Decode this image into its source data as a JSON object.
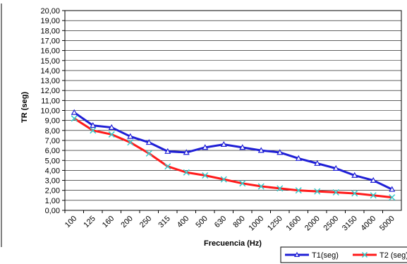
{
  "chart_data": {
    "type": "line",
    "title": "",
    "xlabel": "Frecuencia (Hz)",
    "ylabel": "TR (seg)",
    "categories": [
      "100",
      "125",
      "160",
      "200",
      "250",
      "315",
      "400",
      "500",
      "630",
      "800",
      "1000",
      "1250",
      "1600",
      "2000",
      "2500",
      "3150",
      "4000",
      "5000"
    ],
    "ylim": [
      0,
      20
    ],
    "ystep": 1,
    "ytick_labels": [
      "0,00",
      "1,00",
      "2,00",
      "3,00",
      "4,00",
      "5,00",
      "6,00",
      "7,00",
      "8,00",
      "9,00",
      "10,00",
      "11,00",
      "12,00",
      "13,00",
      "14,00",
      "15,00",
      "16,00",
      "17,00",
      "18,00",
      "19,00",
      "20,00"
    ],
    "grid": true,
    "legend_position": "bottom-right",
    "series": [
      {
        "name": "T1(seg)",
        "color": "#1f1fd6",
        "marker": "triangle",
        "marker_color": "#ffffff",
        "values": [
          9.8,
          8.5,
          8.3,
          7.4,
          6.8,
          5.9,
          5.8,
          6.3,
          6.6,
          6.3,
          6.0,
          5.8,
          5.2,
          4.7,
          4.2,
          3.5,
          3.0,
          2.1
        ]
      },
      {
        "name": "T2 (seg)",
        "color": "#ff1a1a",
        "marker": "x",
        "marker_color": "#33cccc",
        "values": [
          9.2,
          8.0,
          7.6,
          6.8,
          5.7,
          4.4,
          3.8,
          3.5,
          3.1,
          2.7,
          2.4,
          2.2,
          2.0,
          1.9,
          1.8,
          1.7,
          1.5,
          1.3
        ]
      }
    ]
  }
}
